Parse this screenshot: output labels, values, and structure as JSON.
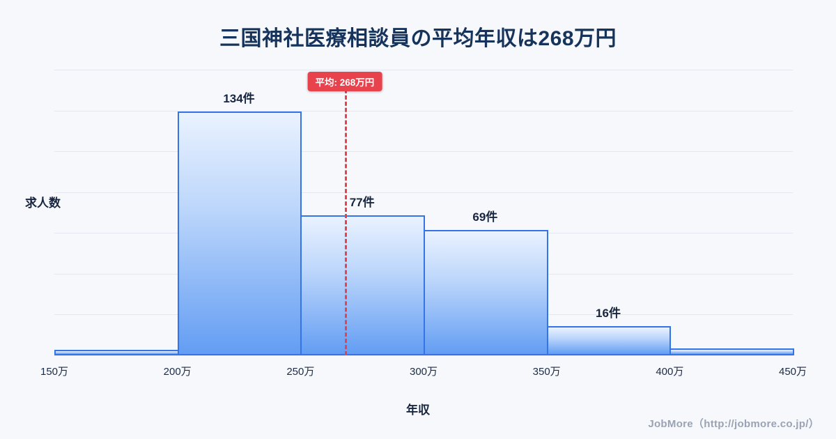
{
  "page": {
    "footer": "JobMore（http://jobmore.co.jp/）"
  },
  "chart_data": {
    "type": "bar",
    "title": "三国神社医療相談員の平均年収は268万円",
    "xlabel": "年収",
    "ylabel": "求人数",
    "bin_edges_labels": [
      "150万",
      "200万",
      "250万",
      "300万",
      "350万",
      "400万",
      "450万"
    ],
    "bin_edges_values": [
      150,
      200,
      250,
      300,
      350,
      400,
      450
    ],
    "values": [
      3,
      134,
      77,
      69,
      16,
      4
    ],
    "bar_labels": [
      "",
      "134件",
      "77件",
      "69件",
      "16件",
      ""
    ],
    "ylim": [
      0,
      157
    ],
    "grid": true,
    "legend": false,
    "annotation": {
      "label": "平均: 268万円",
      "x_value": 268,
      "color": "#e8424c"
    },
    "colors": {
      "bar_fill_top": "#eaf2ff",
      "bar_fill_bottom": "#639df3",
      "bar_border": "#3474e6",
      "grid": "#e4e7f0",
      "title": "#16335c",
      "text": "#17253f",
      "background": "#f7f8fc",
      "footer_text": "#9aa3b3"
    }
  }
}
